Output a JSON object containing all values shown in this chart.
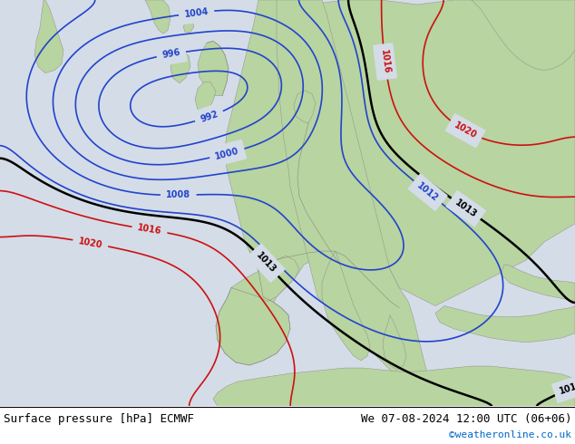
{
  "title_left": "Surface pressure [hPa] ECMWF",
  "title_right": "We 07-08-2024 12:00 UTC (06+06)",
  "copyright": "©weatheronline.co.uk",
  "ocean_color": "#d4dce8",
  "land_color": "#b8d4a0",
  "mountain_color": "#b0b890",
  "footer_bg": "#ffffff",
  "footer_text_color": "#000000",
  "copyright_color": "#0066cc",
  "blue_color": "#2244cc",
  "red_color": "#cc1111",
  "black_color": "#000000",
  "fig_width": 6.34,
  "fig_height": 4.9,
  "dpi": 100
}
